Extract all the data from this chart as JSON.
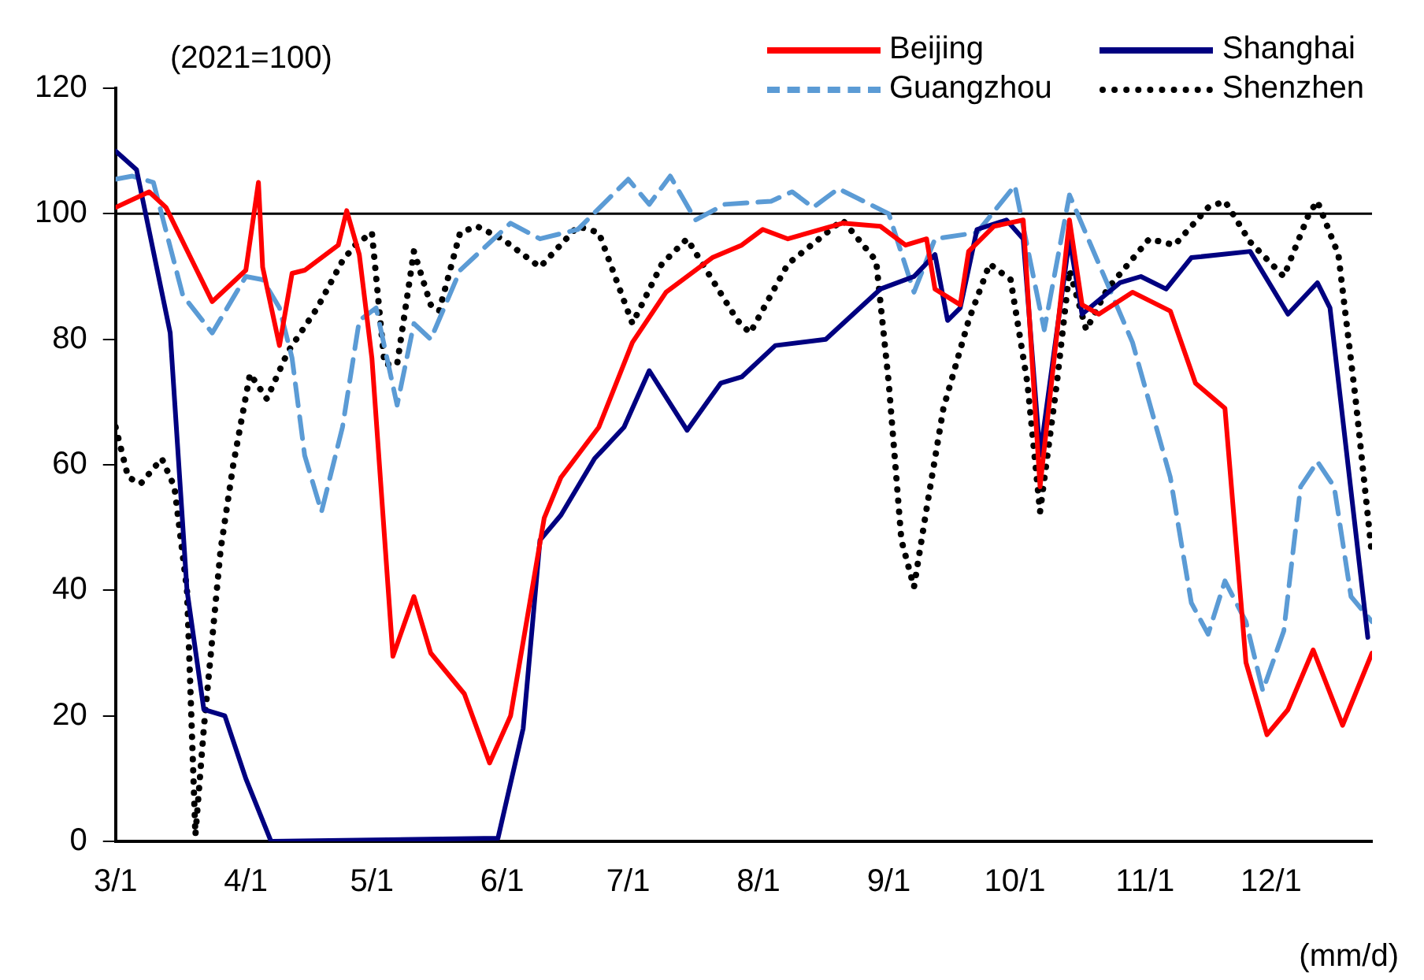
{
  "chart_data": {
    "type": "line",
    "annotations": [
      "(2021=100)",
      "(mm/d)"
    ],
    "xlim": [
      "--03-01",
      "--12-25"
    ],
    "xticks": [
      {
        "value": "--03-01",
        "label": "3/1"
      },
      {
        "value": "--04-01",
        "label": "4/1"
      },
      {
        "value": "--05-01",
        "label": "5/1"
      },
      {
        "value": "--06-01",
        "label": "6/1"
      },
      {
        "value": "--07-01",
        "label": "7/1"
      },
      {
        "value": "--08-01",
        "label": "8/1"
      },
      {
        "value": "--09-01",
        "label": "9/1"
      },
      {
        "value": "--10-01",
        "label": "10/1"
      },
      {
        "value": "--11-01",
        "label": "11/1"
      },
      {
        "value": "--12-01",
        "label": "12/1"
      }
    ],
    "ylim": [
      0,
      120
    ],
    "yticks": [
      0,
      20,
      40,
      60,
      80,
      100,
      120
    ],
    "grid": false,
    "legend": "top right",
    "marker": "none",
    "ref_lines": [
      {
        "axis": "y",
        "value": 100,
        "color": "#000000"
      }
    ],
    "series": [
      {
        "name": "Beijing",
        "color": "#ff0000",
        "line_style": "solid",
        "x": [
          "--03-01",
          "--03-09",
          "--03-13",
          "--03-24",
          "--03-28",
          "--04-01",
          "--04-04",
          "--04-05",
          "--04-09",
          "--04-12",
          "--04-15",
          "--04-23",
          "--04-25",
          "--04-28",
          "--05-01",
          "--05-06",
          "--05-11",
          "--05-15",
          "--05-23",
          "--05-29",
          "--06-03",
          "--06-11",
          "--06-15",
          "--06-24",
          "--07-02",
          "--07-10",
          "--07-21",
          "--07-28",
          "--08-02",
          "--08-08",
          "--08-21",
          "--08-30",
          "--09-05",
          "--09-10",
          "--09-12",
          "--09-18",
          "--09-20",
          "--09-26",
          "--10-03",
          "--10-07",
          "--10-14",
          "--10-17",
          "--10-21",
          "--10-29",
          "--11-07",
          "--11-13",
          "--11-20",
          "--11-25",
          "--11-30",
          "--12-05",
          "--12-11",
          "--12-18",
          "--12-25"
        ],
        "values": [
          101,
          103.5,
          101,
          86,
          88.5,
          91,
          105,
          91.5,
          79,
          90.5,
          91,
          95,
          100.5,
          93.5,
          77,
          29.5,
          39,
          30,
          23.5,
          12.5,
          20,
          51.5,
          58,
          66,
          79.5,
          87.5,
          93,
          95,
          97.5,
          96,
          98.5,
          98,
          95,
          96,
          88,
          85.5,
          94,
          98,
          99,
          56.5,
          99,
          85.5,
          84,
          87.5,
          84.5,
          73,
          69,
          28.5,
          17,
          21,
          30.5,
          18.5,
          30
        ]
      },
      {
        "name": "Shanghai",
        "color": "#000080",
        "line_style": "solid",
        "x": [
          "--03-01",
          "--03-06",
          "--03-14",
          "--03-18",
          "--03-22",
          "--03-27",
          "--04-01",
          "--04-07",
          "--05-31",
          "--06-06",
          "--06-10",
          "--06-15",
          "--06-23",
          "--06-30",
          "--07-06",
          "--07-15",
          "--07-23",
          "--07-28",
          "--08-05",
          "--08-17",
          "--08-30",
          "--09-07",
          "--09-12",
          "--09-15",
          "--09-18",
          "--09-22",
          "--09-29",
          "--10-03",
          "--10-07",
          "--10-14",
          "--10-17",
          "--10-26",
          "--10-31",
          "--11-06",
          "--11-12",
          "--11-26",
          "--12-05",
          "--12-12",
          "--12-15",
          "--12-24"
        ],
        "values": [
          110,
          107,
          81,
          40,
          21,
          20,
          10,
          0,
          0.5,
          18,
          48,
          52,
          61,
          66,
          75,
          65.5,
          73,
          74,
          79,
          80,
          88,
          90,
          93.5,
          83,
          85,
          97.5,
          99,
          96,
          61.5,
          96,
          84,
          89,
          90,
          88,
          93,
          94,
          84,
          89,
          85,
          32.5
        ]
      },
      {
        "name": "Guangzhou",
        "color": "#5b9bd5",
        "line_style": "dashed",
        "x": [
          "--03-01",
          "--03-05",
          "--03-10",
          "--03-17",
          "--03-24",
          "--04-01",
          "--04-05",
          "--04-09",
          "--04-12",
          "--04-15",
          "--04-19",
          "--04-24",
          "--04-28",
          "--05-02",
          "--05-07",
          "--05-11",
          "--05-15",
          "--05-22",
          "--06-03",
          "--06-10",
          "--06-19",
          "--07-01",
          "--07-06",
          "--07-11",
          "--07-17",
          "--07-24",
          "--08-04",
          "--08-09",
          "--08-14",
          "--08-20",
          "--08-29",
          "--09-01",
          "--09-07",
          "--09-12",
          "--09-22",
          "--10-01",
          "--10-08",
          "--10-14",
          "--10-21",
          "--10-29",
          "--11-07",
          "--11-12",
          "--11-16",
          "--11-20",
          "--11-25",
          "--11-29",
          "--12-04",
          "--12-08",
          "--12-12",
          "--12-16",
          "--12-20",
          "--12-25"
        ],
        "values": [
          105.5,
          106,
          105,
          87,
          81,
          90,
          89.5,
          85,
          77,
          61.5,
          52.5,
          66,
          83,
          85,
          69.5,
          82.5,
          80,
          91,
          98.5,
          96,
          97.5,
          105.5,
          101.5,
          106,
          99,
          101.5,
          102,
          103.5,
          101,
          104,
          101,
          100,
          87.5,
          96,
          97,
          104.5,
          81.5,
          103,
          92,
          79.5,
          58,
          38,
          33,
          41.5,
          35,
          24,
          33.5,
          56.5,
          60.5,
          56.5,
          39,
          35
        ]
      },
      {
        "name": "Shenzhen",
        "color": "#000000",
        "line_style": "dotted",
        "x": [
          "--03-01",
          "--03-04",
          "--03-07",
          "--03-12",
          "--03-15",
          "--03-18",
          "--03-20",
          "--03-22",
          "--03-26",
          "--03-29",
          "--04-02",
          "--04-06",
          "--04-11",
          "--04-18",
          "--04-24",
          "--04-27",
          "--05-01",
          "--05-04",
          "--05-07",
          "--05-11",
          "--05-15",
          "--05-17",
          "--05-22",
          "--05-26",
          "--06-01",
          "--06-10",
          "--06-19",
          "--06-24",
          "--07-02",
          "--07-09",
          "--07-15",
          "--07-27",
          "--07-30",
          "--08-08",
          "--08-21",
          "--08-29",
          "--09-01",
          "--09-04",
          "--09-07",
          "--09-10",
          "--09-14",
          "--09-20",
          "--09-25",
          "--09-30",
          "--10-04",
          "--10-07",
          "--10-11",
          "--10-14",
          "--10-18",
          "--10-23",
          "--11-02",
          "--11-08",
          "--11-16",
          "--11-20",
          "--11-26",
          "--12-04",
          "--12-10",
          "--12-12",
          "--12-17",
          "--12-21",
          "--12-25"
        ],
        "values": [
          66,
          58,
          57,
          61,
          56.5,
          40,
          1,
          18,
          46.5,
          60,
          74.5,
          70.5,
          78,
          85,
          92.5,
          95,
          97,
          76,
          76,
          94,
          85.5,
          84.5,
          97,
          98,
          96,
          91.5,
          98,
          97,
          82.5,
          92,
          96,
          83,
          81,
          92,
          99,
          92.5,
          73,
          48,
          40.5,
          53,
          69,
          83,
          92,
          89.5,
          73,
          52.5,
          73,
          91,
          81.5,
          88,
          96,
          95,
          101,
          102,
          95.5,
          90,
          100,
          102,
          93.5,
          71,
          45.5
        ]
      }
    ]
  }
}
